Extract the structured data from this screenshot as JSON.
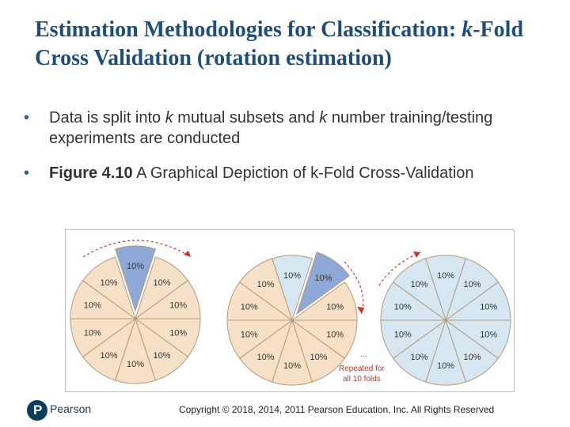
{
  "slide": {
    "title_part1": "Estimation Methodologies for Classification: ",
    "title_k": "k",
    "title_part2": "-Fold Cross Validation (rotation estimation)"
  },
  "bullets": [
    {
      "segments": [
        {
          "text": "Data is split into ",
          "style": "normal"
        },
        {
          "text": "k",
          "style": "italic"
        },
        {
          "text": " mutual subsets and ",
          "style": "normal"
        },
        {
          "text": "k",
          "style": "italic"
        },
        {
          "text": " number training/testing experiments are conducted",
          "style": "normal"
        }
      ]
    },
    {
      "segments": [
        {
          "text": "Figure 4.10",
          "style": "bold"
        },
        {
          "text": " A Graphical Depiction of k-Fold Cross-Validation",
          "style": "normal"
        }
      ]
    }
  ],
  "figure": {
    "wedge_label": "10%",
    "wedge_count": 10,
    "repeat_label_line1": "Repeated for",
    "repeat_label_line2": "all 10 folds",
    "ellipsis": "...",
    "colors": {
      "fill_default": "#f6e1c8",
      "fill_highlight": "#8ea9d8",
      "fill_done": "#d7e7f2",
      "stroke": "#b49a7d",
      "arrow": "#c0392b"
    },
    "circles": [
      {
        "id": "circle-1",
        "highlight": [
          0
        ],
        "done": [],
        "explode": 0
      },
      {
        "id": "circle-2",
        "highlight": [
          1
        ],
        "done": [
          0
        ],
        "explode": 1
      },
      {
        "id": "circle-3",
        "highlight": [],
        "done": [
          0,
          1,
          2,
          3,
          4,
          5,
          6,
          7,
          8,
          9
        ],
        "explode": null
      }
    ]
  },
  "footer": {
    "logo_letter": "P",
    "logo_name": "Pearson",
    "copyright": "Copyright © 2018, 2014, 2011 Pearson Education, Inc. All Rights Reserved"
  }
}
